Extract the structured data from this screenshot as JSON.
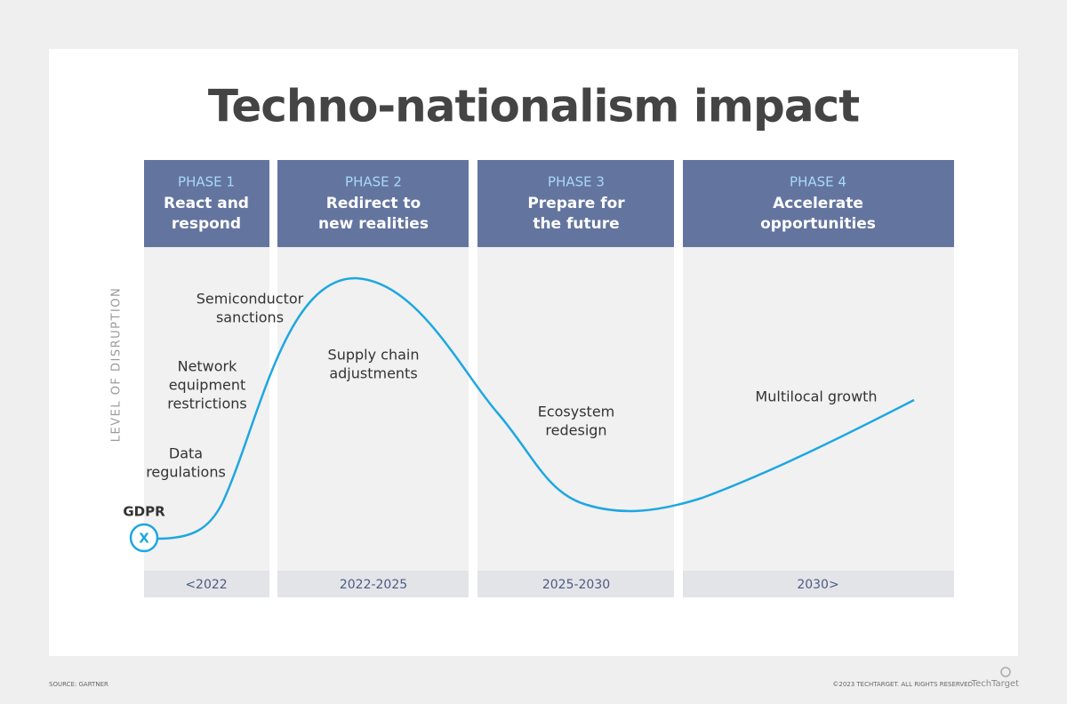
{
  "title": "Techno-nationalism impact",
  "y_axis_label": "LEVEL OF DISRUPTION",
  "phases": [
    {
      "label": "PHASE 1",
      "title": [
        "React and",
        "respond"
      ],
      "period": "<2022"
    },
    {
      "label": "PHASE 2",
      "title": [
        "Redirect to",
        "new realities"
      ],
      "period": "2022-2025"
    },
    {
      "label": "PHASE 3",
      "title": [
        "Prepare for",
        "the future"
      ],
      "period": "2025-2030"
    },
    {
      "label": "PHASE 4",
      "title": [
        "Accelerate",
        "opportunities"
      ],
      "period": "2030>"
    }
  ],
  "annotations": [
    [
      "Semiconductor",
      "sanctions"
    ],
    [
      "Network",
      "equipment",
      "restrictions"
    ],
    [
      "Data",
      "regulations"
    ],
    [
      "Supply chain",
      "adjustments"
    ],
    [
      "Ecosystem",
      "redesign"
    ],
    [
      "Multilocal growth"
    ]
  ],
  "start_marker": {
    "label": "GDPR",
    "symbol": "X"
  },
  "footer": {
    "source": "SOURCE: GARTNER",
    "copyright": "©2023 TECHTARGET. ALL RIGHTS RESERVED",
    "logo": "TechTarget"
  }
}
